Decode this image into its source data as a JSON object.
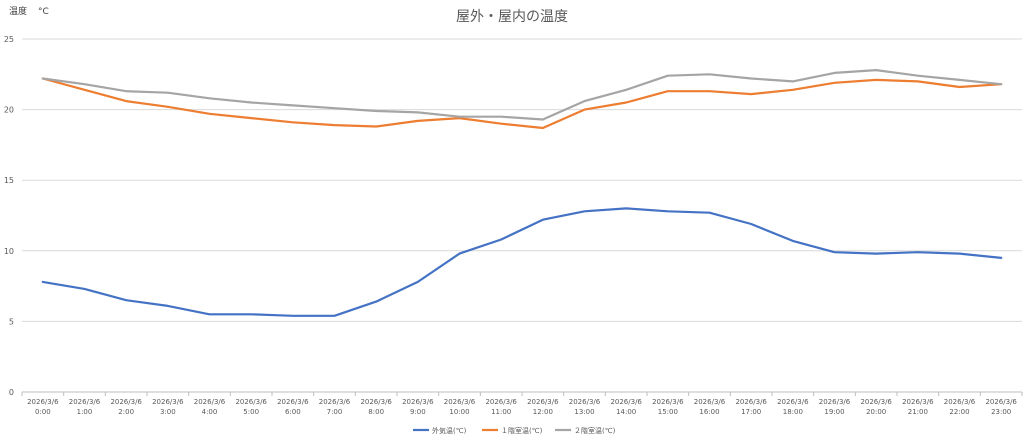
{
  "chart_data": {
    "type": "line",
    "title": "屋外・屋内の温度",
    "ylabel_left": "温度",
    "ylabel_unit": "°C",
    "xlabel": "",
    "ylim": [
      0,
      25
    ],
    "yticks": [
      0,
      5,
      10,
      15,
      20,
      25
    ],
    "grid": true,
    "legend_position": "bottom",
    "categories": [
      "2026/3/6 0:00",
      "2026/3/6 1:00",
      "2026/3/6 2:00",
      "2026/3/6 3:00",
      "2026/3/6 4:00",
      "2026/3/6 5:00",
      "2026/3/6 6:00",
      "2026/3/6 7:00",
      "2026/3/6 8:00",
      "2026/3/6 9:00",
      "2026/3/6 10:00",
      "2026/3/6 11:00",
      "2026/3/6 12:00",
      "2026/3/6 13:00",
      "2026/3/6 14:00",
      "2026/3/6 15:00",
      "2026/3/6 16:00",
      "2026/3/6 17:00",
      "2026/3/6 18:00",
      "2026/3/6 19:00",
      "2026/3/6 20:00",
      "2026/3/6 21:00",
      "2026/3/6 22:00",
      "2026/3/6 23:00"
    ],
    "series": [
      {
        "name": "外気温(℃)",
        "color": "#4472C4",
        "values": [
          7.8,
          7.3,
          6.5,
          6.1,
          5.5,
          5.5,
          5.4,
          5.4,
          6.4,
          7.8,
          9.8,
          10.8,
          12.2,
          12.8,
          13.0,
          12.8,
          12.7,
          11.9,
          10.7,
          9.9,
          9.8,
          9.9,
          9.8,
          9.5
        ]
      },
      {
        "name": "１階室温(℃)",
        "color": "#ED7D31",
        "values": [
          22.2,
          21.4,
          20.6,
          20.2,
          19.7,
          19.4,
          19.1,
          18.9,
          18.8,
          19.2,
          19.4,
          19.0,
          18.7,
          20.0,
          20.5,
          21.3,
          21.3,
          21.1,
          21.4,
          21.9,
          22.1,
          22.0,
          21.6,
          21.8
        ]
      },
      {
        "name": "２階室温(℃)",
        "color": "#A5A5A5",
        "values": [
          22.2,
          21.8,
          21.3,
          21.2,
          20.8,
          20.5,
          20.3,
          20.1,
          19.9,
          19.8,
          19.5,
          19.5,
          19.3,
          20.6,
          21.4,
          22.4,
          22.5,
          22.2,
          22.0,
          22.6,
          22.8,
          22.4,
          22.1,
          21.8
        ]
      }
    ]
  }
}
